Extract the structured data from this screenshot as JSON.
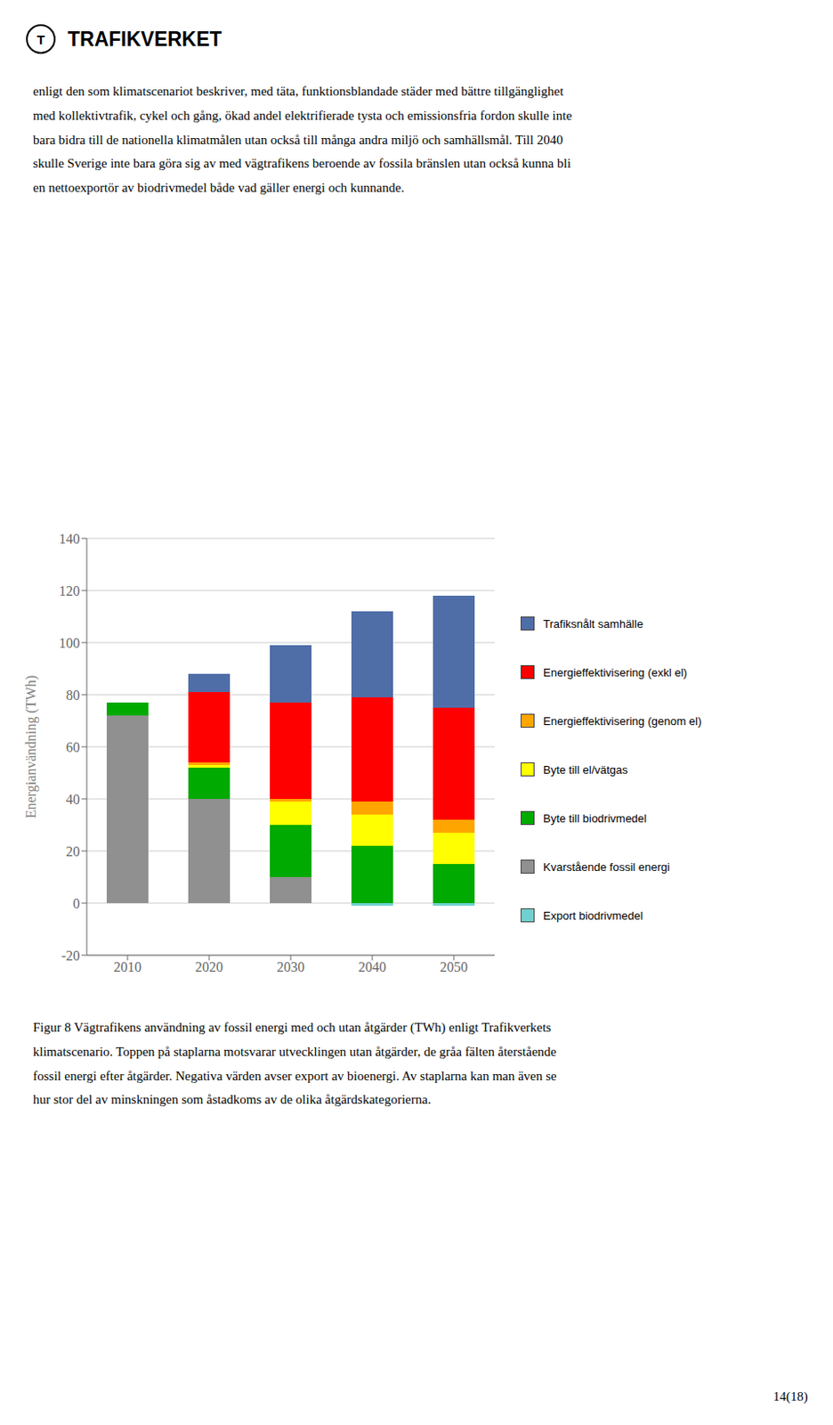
{
  "chart_data": {
    "type": "bar",
    "stacked": true,
    "grid": true,
    "categories": [
      "2010",
      "2020",
      "2030",
      "2040",
      "2050"
    ],
    "series": [
      {
        "name": "Kvarstående fossil energi",
        "color": "#909090",
        "values": [
          72,
          40,
          10,
          0,
          0
        ]
      },
      {
        "name": "Byte till biodrivmedel",
        "color": "#00AA00",
        "values": [
          5,
          12,
          20,
          22,
          15
        ]
      },
      {
        "name": "Byte till el/vätgas",
        "color": "#FFFF00",
        "values": [
          0,
          1,
          9,
          12,
          12
        ]
      },
      {
        "name": "Energieffektivisering (genom el)",
        "color": "#FFA500",
        "values": [
          0,
          1,
          1,
          5,
          5
        ]
      },
      {
        "name": "Energieffektivisering (exkl el)",
        "color": "#FF0000",
        "values": [
          0,
          27,
          37,
          40,
          43
        ]
      },
      {
        "name": "Trafiksnålt samhälle",
        "color": "#4F6EA8",
        "values": [
          0,
          7,
          22,
          33,
          43
        ]
      },
      {
        "name": "Export biodrivmedel",
        "color": "#70D0D0",
        "values": [
          0,
          0,
          0,
          -1,
          -1
        ]
      }
    ],
    "ylabel": "Energianvändning (TWh)",
    "ylim": [
      -20,
      140
    ],
    "yticks": [
      -20,
      0,
      20,
      40,
      60,
      80,
      100,
      120,
      140
    ],
    "annotations": [
      "T",
      "TRAFIKVERKET",
      "enligt den som klimatscenariot beskriver, med täta, funktionsblandade städer med bättre tillgänglighet\nmed kollektivtrafik, cykel och gång, ökad andel elektrifierade tysta och emissionsfria fordon skulle inte\nbara bidra till de nationella klimatmålen utan också till många andra miljö och samhällsmål. Till 2040\nskulle Sverige inte bara göra sig av med vägtrafikens beroende av fossila bränslen utan också kunna bli\nen nettoexportör av biodrivmedel både vad gäller energi och kunnande.",
      "Figur 8 Vägtrafikens användning av fossil energi med och utan åtgärder (TWh) enligt Trafikverkets\nklimatscenario. Toppen på staplarna motsvarar utvecklingen utan åtgärder, de gråa fälten återstående\nfossil energi efter åtgärder. Negativa värden avser export av bioenergi. Av staplarna kan man även se\nhur stor del av minskningen som åstadkoms av de olika åtgärdskategorierna.",
      "14(18)"
    ]
  }
}
